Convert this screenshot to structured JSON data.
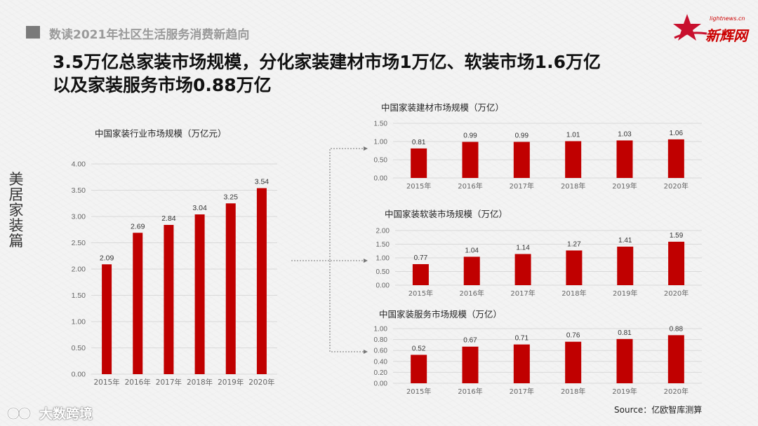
{
  "header": {
    "section_title": "数读2021年社区生活服务消费新趋向"
  },
  "headline": {
    "line1": "3.5万亿总家装市场规模，分化家装建材市场1万亿、软装市场1.6万亿",
    "line2": "以及家装服务市场0.88万亿"
  },
  "logo": {
    "tagline": "lightnews.cn",
    "name": "新辉网"
  },
  "side_label": [
    "美",
    "居",
    "家",
    "装",
    "篇"
  ],
  "source": "Source：亿欧智库测算",
  "watermark": "大数跨境",
  "colors": {
    "bar": "#c00000",
    "accent": "#c8102e",
    "grid": "#d9d9d9"
  },
  "chart_data": [
    {
      "type": "bar",
      "title": "中国家装行业市场规模（万亿元）",
      "categories": [
        "2015年",
        "2016年",
        "2017年",
        "2018年",
        "2019年",
        "2020年"
      ],
      "values": [
        2.09,
        2.69,
        2.84,
        3.04,
        3.25,
        3.54
      ],
      "value_labels": [
        "2.09",
        "2.69",
        "2.84",
        "3.04",
        "3.25",
        "3.54"
      ],
      "yticks": [
        "0.00",
        "0.50",
        "1.00",
        "1.50",
        "2.00",
        "2.50",
        "3.00",
        "3.50",
        "4.00"
      ],
      "ylim": [
        0,
        4
      ],
      "grid": true
    },
    {
      "type": "bar",
      "title": "中国家装建材市场规模（万亿）",
      "categories": [
        "2015年",
        "2016年",
        "2017年",
        "2018年",
        "2019年",
        "2020年"
      ],
      "values": [
        0.81,
        0.99,
        0.99,
        1.01,
        1.03,
        1.06
      ],
      "value_labels": [
        "0.81",
        "0.99",
        "0.99",
        "1.01",
        "1.03",
        "1.06"
      ],
      "yticks": [
        "0.00",
        "0.50",
        "1.00",
        "1.50"
      ],
      "ylim": [
        0,
        1.5
      ],
      "grid": true
    },
    {
      "type": "bar",
      "title": "中国家装软装市场规模（万亿）",
      "categories": [
        "2015年",
        "2016年",
        "2017年",
        "2018年",
        "2019年",
        "2020年"
      ],
      "values": [
        0.77,
        1.04,
        1.14,
        1.27,
        1.41,
        1.59
      ],
      "value_labels": [
        "0.77",
        "1.04",
        "1.14",
        "1.27",
        "1.41",
        "1.59"
      ],
      "yticks": [
        "0.00",
        "0.50",
        "1.00",
        "1.50",
        "2.00"
      ],
      "ylim": [
        0,
        2
      ],
      "grid": true
    },
    {
      "type": "bar",
      "title": "中国家装服务市场规模（万亿）",
      "categories": [
        "2015年",
        "2016年",
        "2017年",
        "2018年",
        "2019年",
        "2020年"
      ],
      "values": [
        0.52,
        0.67,
        0.71,
        0.76,
        0.81,
        0.88
      ],
      "value_labels": [
        "0.52",
        "0.67",
        "0.71",
        "0.76",
        "0.81",
        "0.88"
      ],
      "yticks": [
        "0.00",
        "0.20",
        "0.40",
        "0.60",
        "0.80",
        "1.00"
      ],
      "ylim": [
        0,
        1
      ],
      "grid": true
    }
  ]
}
